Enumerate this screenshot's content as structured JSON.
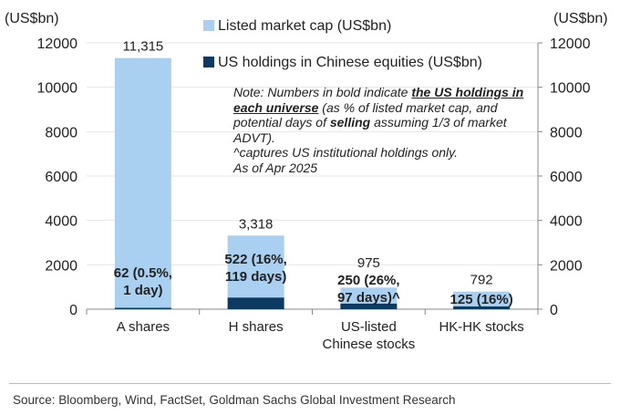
{
  "chart_data": {
    "type": "bar",
    "categories": [
      "A shares",
      "H shares",
      "US-listed Chinese stocks",
      "HK-HK stocks"
    ],
    "category_lines": [
      [
        "A shares"
      ],
      [
        "H shares"
      ],
      [
        "US-listed",
        "Chinese stocks"
      ],
      [
        "HK-HK stocks"
      ]
    ],
    "series": [
      {
        "name": "Listed market cap (US$bn)",
        "values": [
          11315,
          3318,
          975,
          792
        ],
        "color": "#a9d0f0"
      },
      {
        "name": "US holdings in Chinese equities (US$bn)",
        "values": [
          62,
          522,
          250,
          125
        ],
        "color": "#0d3a63"
      }
    ],
    "value_labels": [
      "11,315",
      "3,318",
      "975",
      "792"
    ],
    "holding_labels": [
      [
        "62 (0.5%,",
        "1 day)"
      ],
      [
        "522 (16%,",
        "119 days)"
      ],
      [
        "250 (26%,",
        "97 days)^"
      ],
      [
        "125 (16%)"
      ]
    ],
    "ylim": [
      0,
      12000
    ],
    "yticks": [
      0,
      2000,
      4000,
      6000,
      8000,
      10000,
      12000
    ],
    "ylabel_left": "(US$bn)",
    "ylabel_right": "(US$bn)",
    "legend_placement": "top-center",
    "grid": true
  },
  "note": {
    "part1": "Note: Numbers in bold indicate ",
    "underlined": "the US holdings in each universe",
    "part2": " (as % of listed market cap, and potential days of ",
    "bold_selling": "selling",
    "part3": " assuming 1/3 of market ADVT).",
    "line2": "^captures US institutional holdings only.",
    "line3": "As of Apr 2025"
  },
  "source": "Source: Bloomberg, Wind, FactSet, Goldman Sachs Global Investment Research"
}
